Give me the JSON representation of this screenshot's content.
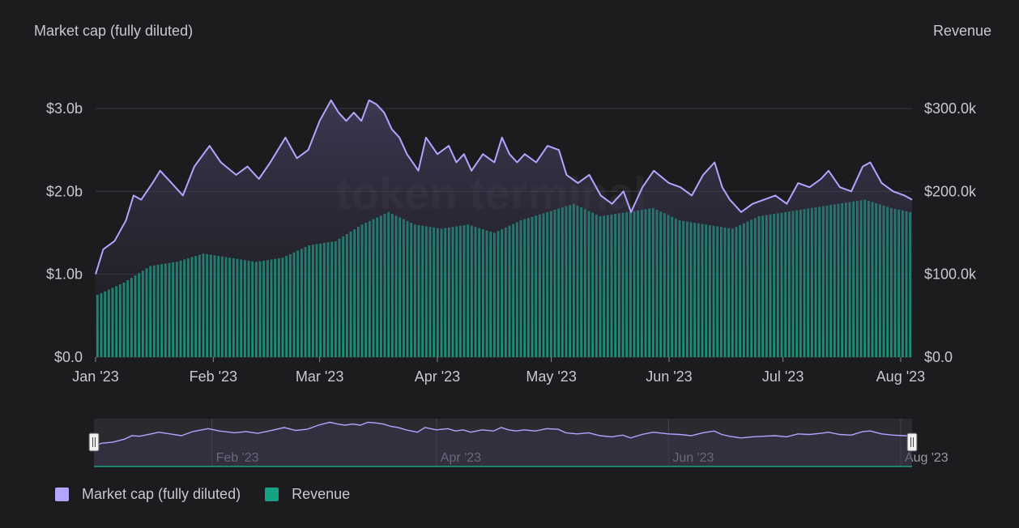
{
  "header": {
    "left_title": "Market cap (fully diluted)",
    "right_title": "Revenue"
  },
  "watermark": "token terminal_",
  "legend": [
    {
      "label": "Market cap (fully diluted)",
      "color": "#b3a4ff"
    },
    {
      "label": "Revenue",
      "color": "#16a383"
    }
  ],
  "navigator": {
    "labels": [
      "Feb '23",
      "Apr '23",
      "Jun '23",
      "Aug '23"
    ],
    "handle_icon": "grip-handle-icon"
  },
  "chart_data": {
    "type": "bar+line",
    "x_tick_labels": [
      "Jan '23",
      "Feb '23",
      "Mar '23",
      "Apr '23",
      "May '23",
      "Jun '23",
      "Jul '23",
      "Aug '23"
    ],
    "x_tick_dates": [
      "2023-01-01",
      "2023-02-01",
      "2023-03-01",
      "2023-04-01",
      "2023-05-01",
      "2023-06-01",
      "2023-07-01",
      "2023-08-01"
    ],
    "x_range": [
      "2023-01-01",
      "2023-08-04"
    ],
    "y_left": {
      "label": "Market cap (fully diluted)",
      "ticks": [
        "$0.0",
        "$1.0b",
        "$2.0b",
        "$3.0b"
      ],
      "tick_values": [
        0,
        1.0,
        2.0,
        3.0
      ],
      "unit": "billion USD",
      "range": [
        0,
        3.0
      ]
    },
    "y_right": {
      "label": "Revenue",
      "ticks": [
        "$0.0",
        "$100.0k",
        "$200.0k",
        "$300.0k"
      ],
      "tick_values": [
        0,
        100,
        200,
        300
      ],
      "unit": "thousand USD",
      "range": [
        0,
        300
      ]
    },
    "grid": true,
    "legend_position": "bottom-left",
    "series": [
      {
        "name": "Market cap (fully diluted)",
        "type": "line",
        "axis": "left",
        "color": "#b3a4ff",
        "points": [
          [
            "2023-01-01",
            1.0
          ],
          [
            "2023-01-03",
            1.3
          ],
          [
            "2023-01-06",
            1.4
          ],
          [
            "2023-01-09",
            1.65
          ],
          [
            "2023-01-11",
            1.95
          ],
          [
            "2023-01-13",
            1.9
          ],
          [
            "2023-01-16",
            2.1
          ],
          [
            "2023-01-18",
            2.25
          ],
          [
            "2023-01-21",
            2.1
          ],
          [
            "2023-01-24",
            1.95
          ],
          [
            "2023-01-27",
            2.3
          ],
          [
            "2023-01-31",
            2.55
          ],
          [
            "2023-02-03",
            2.35
          ],
          [
            "2023-02-07",
            2.2
          ],
          [
            "2023-02-10",
            2.3
          ],
          [
            "2023-02-13",
            2.15
          ],
          [
            "2023-02-16",
            2.35
          ],
          [
            "2023-02-20",
            2.65
          ],
          [
            "2023-02-23",
            2.4
          ],
          [
            "2023-02-26",
            2.5
          ],
          [
            "2023-03-01",
            2.85
          ],
          [
            "2023-03-04",
            3.1
          ],
          [
            "2023-03-06",
            2.95
          ],
          [
            "2023-03-08",
            2.85
          ],
          [
            "2023-03-10",
            2.95
          ],
          [
            "2023-03-12",
            2.85
          ],
          [
            "2023-03-14",
            3.1
          ],
          [
            "2023-03-16",
            3.05
          ],
          [
            "2023-03-18",
            2.95
          ],
          [
            "2023-03-20",
            2.75
          ],
          [
            "2023-03-22",
            2.65
          ],
          [
            "2023-03-24",
            2.45
          ],
          [
            "2023-03-27",
            2.25
          ],
          [
            "2023-03-29",
            2.65
          ],
          [
            "2023-04-01",
            2.45
          ],
          [
            "2023-04-04",
            2.55
          ],
          [
            "2023-04-06",
            2.35
          ],
          [
            "2023-04-08",
            2.45
          ],
          [
            "2023-04-10",
            2.25
          ],
          [
            "2023-04-13",
            2.45
          ],
          [
            "2023-04-16",
            2.35
          ],
          [
            "2023-04-18",
            2.65
          ],
          [
            "2023-04-20",
            2.45
          ],
          [
            "2023-04-22",
            2.35
          ],
          [
            "2023-04-24",
            2.45
          ],
          [
            "2023-04-27",
            2.35
          ],
          [
            "2023-04-30",
            2.55
          ],
          [
            "2023-05-03",
            2.5
          ],
          [
            "2023-05-05",
            2.2
          ],
          [
            "2023-05-08",
            2.1
          ],
          [
            "2023-05-11",
            2.2
          ],
          [
            "2023-05-14",
            1.95
          ],
          [
            "2023-05-17",
            1.85
          ],
          [
            "2023-05-20",
            2.0
          ],
          [
            "2023-05-22",
            1.75
          ],
          [
            "2023-05-25",
            2.05
          ],
          [
            "2023-05-28",
            2.25
          ],
          [
            "2023-06-01",
            2.1
          ],
          [
            "2023-06-04",
            2.05
          ],
          [
            "2023-06-07",
            1.95
          ],
          [
            "2023-06-10",
            2.2
          ],
          [
            "2023-06-13",
            2.35
          ],
          [
            "2023-06-15",
            2.05
          ],
          [
            "2023-06-17",
            1.9
          ],
          [
            "2023-06-20",
            1.75
          ],
          [
            "2023-06-23",
            1.85
          ],
          [
            "2023-06-26",
            1.9
          ],
          [
            "2023-06-29",
            1.95
          ],
          [
            "2023-07-02",
            1.85
          ],
          [
            "2023-07-05",
            2.1
          ],
          [
            "2023-07-08",
            2.05
          ],
          [
            "2023-07-11",
            2.15
          ],
          [
            "2023-07-13",
            2.25
          ],
          [
            "2023-07-16",
            2.05
          ],
          [
            "2023-07-19",
            2.0
          ],
          [
            "2023-07-22",
            2.3
          ],
          [
            "2023-07-24",
            2.35
          ],
          [
            "2023-07-27",
            2.1
          ],
          [
            "2023-07-30",
            2.0
          ],
          [
            "2023-08-02",
            1.95
          ],
          [
            "2023-08-04",
            1.9
          ]
        ]
      },
      {
        "name": "Revenue",
        "type": "bar",
        "axis": "right",
        "color": "#16a383",
        "points": [
          [
            "2023-01-01",
            75
          ],
          [
            "2023-01-08",
            90
          ],
          [
            "2023-01-15",
            110
          ],
          [
            "2023-01-22",
            115
          ],
          [
            "2023-01-29",
            125
          ],
          [
            "2023-02-05",
            120
          ],
          [
            "2023-02-12",
            115
          ],
          [
            "2023-02-19",
            120
          ],
          [
            "2023-02-26",
            135
          ],
          [
            "2023-03-05",
            140
          ],
          [
            "2023-03-12",
            160
          ],
          [
            "2023-03-19",
            175
          ],
          [
            "2023-03-26",
            160
          ],
          [
            "2023-04-02",
            155
          ],
          [
            "2023-04-09",
            160
          ],
          [
            "2023-04-16",
            150
          ],
          [
            "2023-04-23",
            165
          ],
          [
            "2023-04-30",
            175
          ],
          [
            "2023-05-07",
            185
          ],
          [
            "2023-05-14",
            170
          ],
          [
            "2023-05-21",
            175
          ],
          [
            "2023-05-28",
            180
          ],
          [
            "2023-06-04",
            165
          ],
          [
            "2023-06-11",
            160
          ],
          [
            "2023-06-18",
            155
          ],
          [
            "2023-06-25",
            170
          ],
          [
            "2023-07-02",
            175
          ],
          [
            "2023-07-09",
            180
          ],
          [
            "2023-07-16",
            185
          ],
          [
            "2023-07-23",
            190
          ],
          [
            "2023-07-30",
            180
          ],
          [
            "2023-08-04",
            175
          ]
        ]
      }
    ]
  }
}
